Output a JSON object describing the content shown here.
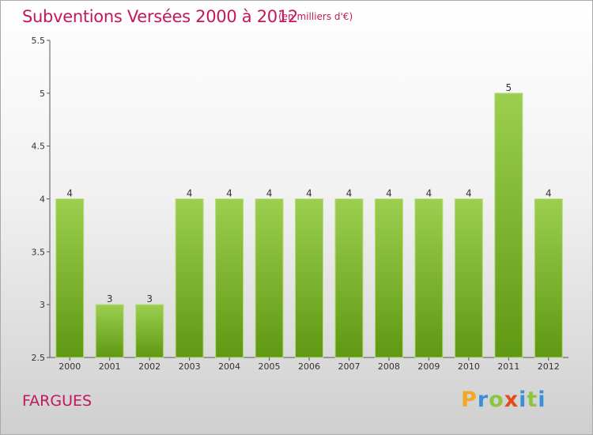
{
  "header": {
    "title": "Subventions Versées 2000 à 2012",
    "subtitle": "(en milliers d'€)"
  },
  "footer": {
    "commune": "FARGUES",
    "logo_letters": [
      "P",
      "r",
      "o",
      "x",
      "i",
      "t",
      "i"
    ],
    "logo_colors": [
      "#f5a623",
      "#3a8fd9",
      "#8cc63f",
      "#e64a19",
      "#3a8fd9",
      "#8cc63f",
      "#3a8fd9"
    ]
  },
  "colors": {
    "title": "#c2185b",
    "bar_top": "#9ccf4f",
    "bar_bottom": "#5f9812",
    "axis": "#555555"
  },
  "chart_data": {
    "type": "bar",
    "title": "Subventions Versées 2000 à 2012",
    "subtitle": "(en milliers d'€)",
    "categories": [
      "2000",
      "2001",
      "2002",
      "2003",
      "2004",
      "2005",
      "2006",
      "2007",
      "2008",
      "2009",
      "2010",
      "2011",
      "2012"
    ],
    "values": [
      4,
      3,
      3,
      4,
      4,
      4,
      4,
      4,
      4,
      4,
      4,
      5,
      4
    ],
    "data_labels": [
      "4",
      "3",
      "3",
      "4",
      "4",
      "4",
      "4",
      "4",
      "4",
      "4",
      "4",
      "5",
      "4"
    ],
    "ylim": [
      2.5,
      5.5
    ],
    "yticks": [
      2.5,
      3,
      3.5,
      4,
      4.5,
      5,
      5.5
    ],
    "ytick_labels": [
      "2.5",
      "3",
      "3.5",
      "4",
      "4.5",
      "5",
      "5.5"
    ],
    "xlabel": "",
    "ylabel": "",
    "grid": false,
    "legend": "none"
  }
}
